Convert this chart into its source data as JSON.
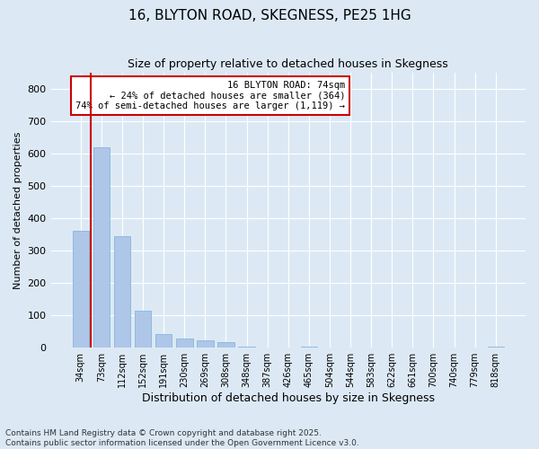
{
  "title": "16, BLYTON ROAD, SKEGNESS, PE25 1HG",
  "subtitle": "Size of property relative to detached houses in Skegness",
  "xlabel": "Distribution of detached houses by size in Skegness",
  "ylabel": "Number of detached properties",
  "categories": [
    "34sqm",
    "73sqm",
    "112sqm",
    "152sqm",
    "191sqm",
    "230sqm",
    "269sqm",
    "308sqm",
    "348sqm",
    "387sqm",
    "426sqm",
    "465sqm",
    "504sqm",
    "544sqm",
    "583sqm",
    "622sqm",
    "661sqm",
    "700sqm",
    "740sqm",
    "779sqm",
    "818sqm"
  ],
  "values": [
    360,
    620,
    345,
    115,
    42,
    28,
    23,
    18,
    3,
    0,
    0,
    3,
    0,
    0,
    0,
    0,
    0,
    0,
    0,
    0,
    3
  ],
  "bar_color": "#aec6e8",
  "bar_edge_color": "#7bafd4",
  "property_line_x": 0.5,
  "annotation_text": "16 BLYTON ROAD: 74sqm\n← 24% of detached houses are smaller (364)\n74% of semi-detached houses are larger (1,119) →",
  "annotation_box_color": "#ffffff",
  "annotation_box_edge": "#cc0000",
  "vline_color": "#cc0000",
  "background_color": "#dce9f5",
  "plot_bg_color": "#dce9f5",
  "ylim": [
    0,
    850
  ],
  "yticks": [
    0,
    100,
    200,
    300,
    400,
    500,
    600,
    700,
    800
  ],
  "footer_line1": "Contains HM Land Registry data © Crown copyright and database right 2025.",
  "footer_line2": "Contains public sector information licensed under the Open Government Licence v3.0.",
  "title_fontsize": 11,
  "footer_fontsize": 6.5
}
